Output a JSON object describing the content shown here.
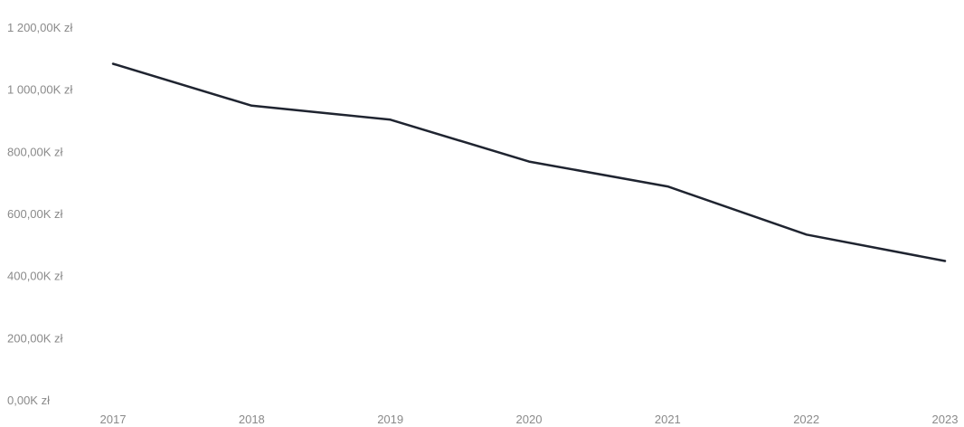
{
  "chart_data": {
    "type": "line",
    "title": "",
    "xlabel": "",
    "ylabel": "",
    "x": [
      "2017",
      "2018",
      "2019",
      "2020",
      "2021",
      "2022",
      "2023"
    ],
    "series": [
      {
        "values": [
          1085,
          950,
          905,
          770,
          690,
          535,
          450
        ]
      }
    ],
    "ylim": [
      0,
      1200
    ],
    "y_ticks": [
      0,
      200,
      400,
      600,
      800,
      1000,
      1200
    ],
    "y_tick_labels": [
      "0,00K zł",
      "200,00K zł",
      "400,00K zł",
      "600,00K zł",
      "800,00K zł",
      "1 000,00K zł",
      "1 200,00K zł"
    ],
    "grid": false,
    "legend": "none",
    "line_color": "#1f2430"
  }
}
